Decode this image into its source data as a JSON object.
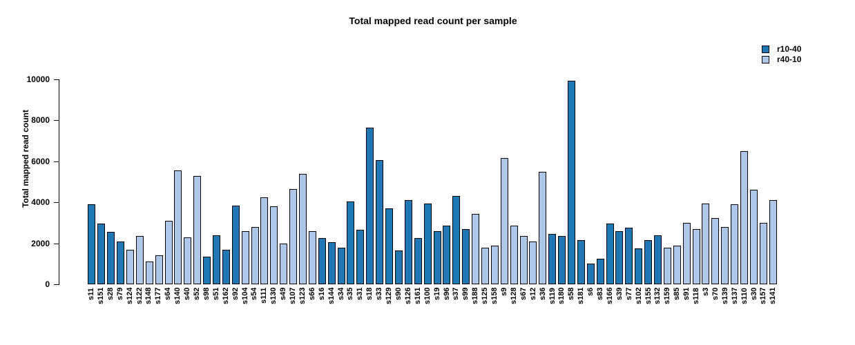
{
  "title": "Total mapped read count per sample",
  "ylabel": "Total mapped read count",
  "legend": [
    {
      "label": "r10-40",
      "color": "#1f77b4"
    },
    {
      "label": "r40-10",
      "color": "#aec7e8"
    }
  ],
  "chart_data": {
    "type": "bar",
    "title": "Total mapped read count per sample",
    "xlabel": "",
    "ylabel": "Total mapped read count",
    "ylim": [
      0,
      10000
    ],
    "yticks": [
      0,
      2000,
      4000,
      6000,
      8000,
      10000
    ],
    "grid": false,
    "legend_position": "top-right",
    "series_colors": {
      "r10-40": "#1f77b4",
      "r40-10": "#aec7e8"
    },
    "bar_border_color": "#000000",
    "samples": [
      {
        "label": "s11",
        "value": 3900,
        "series": "r10-40"
      },
      {
        "label": "s151",
        "value": 2950,
        "series": "r10-40"
      },
      {
        "label": "s28",
        "value": 2550,
        "series": "r10-40"
      },
      {
        "label": "s79",
        "value": 2100,
        "series": "r10-40"
      },
      {
        "label": "s124",
        "value": 1700,
        "series": "r40-10"
      },
      {
        "label": "s122",
        "value": 2350,
        "series": "r40-10"
      },
      {
        "label": "s148",
        "value": 1100,
        "series": "r40-10"
      },
      {
        "label": "s177",
        "value": 1400,
        "series": "r40-10"
      },
      {
        "label": "s64",
        "value": 3100,
        "series": "r40-10"
      },
      {
        "label": "s140",
        "value": 5550,
        "series": "r40-10"
      },
      {
        "label": "s40",
        "value": 2300,
        "series": "r40-10"
      },
      {
        "label": "s52",
        "value": 5300,
        "series": "r40-10"
      },
      {
        "label": "s98",
        "value": 1350,
        "series": "r10-40"
      },
      {
        "label": "s51",
        "value": 2400,
        "series": "r10-40"
      },
      {
        "label": "s162",
        "value": 1700,
        "series": "r10-40"
      },
      {
        "label": "s92",
        "value": 3850,
        "series": "r10-40"
      },
      {
        "label": "s104",
        "value": 2600,
        "series": "r40-10"
      },
      {
        "label": "s54",
        "value": 2800,
        "series": "r40-10"
      },
      {
        "label": "s111",
        "value": 4250,
        "series": "r40-10"
      },
      {
        "label": "s130",
        "value": 3800,
        "series": "r40-10"
      },
      {
        "label": "s49",
        "value": 2000,
        "series": "r40-10"
      },
      {
        "label": "s107",
        "value": 4650,
        "series": "r40-10"
      },
      {
        "label": "s123",
        "value": 5400,
        "series": "r40-10"
      },
      {
        "label": "s66",
        "value": 2600,
        "series": "r40-10"
      },
      {
        "label": "s16",
        "value": 2250,
        "series": "r10-40"
      },
      {
        "label": "s144",
        "value": 2050,
        "series": "r10-40"
      },
      {
        "label": "s34",
        "value": 1800,
        "series": "r10-40"
      },
      {
        "label": "s35",
        "value": 4050,
        "series": "r10-40"
      },
      {
        "label": "s31",
        "value": 2650,
        "series": "r10-40"
      },
      {
        "label": "s18",
        "value": 7650,
        "series": "r10-40"
      },
      {
        "label": "s33",
        "value": 6050,
        "series": "r10-40"
      },
      {
        "label": "s129",
        "value": 3700,
        "series": "r10-40"
      },
      {
        "label": "s90",
        "value": 1650,
        "series": "r10-40"
      },
      {
        "label": "s126",
        "value": 4100,
        "series": "r10-40"
      },
      {
        "label": "s161",
        "value": 2250,
        "series": "r10-40"
      },
      {
        "label": "s100",
        "value": 3950,
        "series": "r10-40"
      },
      {
        "label": "s19",
        "value": 2600,
        "series": "r10-40"
      },
      {
        "label": "s96",
        "value": 2850,
        "series": "r10-40"
      },
      {
        "label": "s37",
        "value": 4300,
        "series": "r10-40"
      },
      {
        "label": "s99",
        "value": 2700,
        "series": "r10-40"
      },
      {
        "label": "s188",
        "value": 3450,
        "series": "r40-10"
      },
      {
        "label": "s125",
        "value": 1800,
        "series": "r40-10"
      },
      {
        "label": "s158",
        "value": 1900,
        "series": "r40-10"
      },
      {
        "label": "s9",
        "value": 6150,
        "series": "r40-10"
      },
      {
        "label": "s128",
        "value": 2850,
        "series": "r40-10"
      },
      {
        "label": "s67",
        "value": 2350,
        "series": "r40-10"
      },
      {
        "label": "s12",
        "value": 2100,
        "series": "r40-10"
      },
      {
        "label": "s36",
        "value": 5500,
        "series": "r40-10"
      },
      {
        "label": "s119",
        "value": 2450,
        "series": "r10-40"
      },
      {
        "label": "s180",
        "value": 2350,
        "series": "r10-40"
      },
      {
        "label": "s58",
        "value": 9950,
        "series": "r10-40"
      },
      {
        "label": "s181",
        "value": 2150,
        "series": "r10-40"
      },
      {
        "label": "s6",
        "value": 1000,
        "series": "r10-40"
      },
      {
        "label": "s83",
        "value": 1250,
        "series": "r10-40"
      },
      {
        "label": "s166",
        "value": 2950,
        "series": "r10-40"
      },
      {
        "label": "s39",
        "value": 2600,
        "series": "r10-40"
      },
      {
        "label": "s77",
        "value": 2750,
        "series": "r10-40"
      },
      {
        "label": "s102",
        "value": 1750,
        "series": "r10-40"
      },
      {
        "label": "s155",
        "value": 2150,
        "series": "r10-40"
      },
      {
        "label": "s132",
        "value": 2400,
        "series": "r10-40"
      },
      {
        "label": "s159",
        "value": 1800,
        "series": "r40-10"
      },
      {
        "label": "s85",
        "value": 1900,
        "series": "r40-10"
      },
      {
        "label": "s91",
        "value": 3000,
        "series": "r40-10"
      },
      {
        "label": "s118",
        "value": 2700,
        "series": "r40-10"
      },
      {
        "label": "s3",
        "value": 3950,
        "series": "r40-10"
      },
      {
        "label": "s70",
        "value": 3250,
        "series": "r40-10"
      },
      {
        "label": "s139",
        "value": 2800,
        "series": "r40-10"
      },
      {
        "label": "s137",
        "value": 3900,
        "series": "r40-10"
      },
      {
        "label": "s110",
        "value": 6500,
        "series": "r40-10"
      },
      {
        "label": "s30",
        "value": 4600,
        "series": "r40-10"
      },
      {
        "label": "s157",
        "value": 3000,
        "series": "r40-10"
      },
      {
        "label": "s141",
        "value": 4100,
        "series": "r40-10"
      }
    ]
  }
}
